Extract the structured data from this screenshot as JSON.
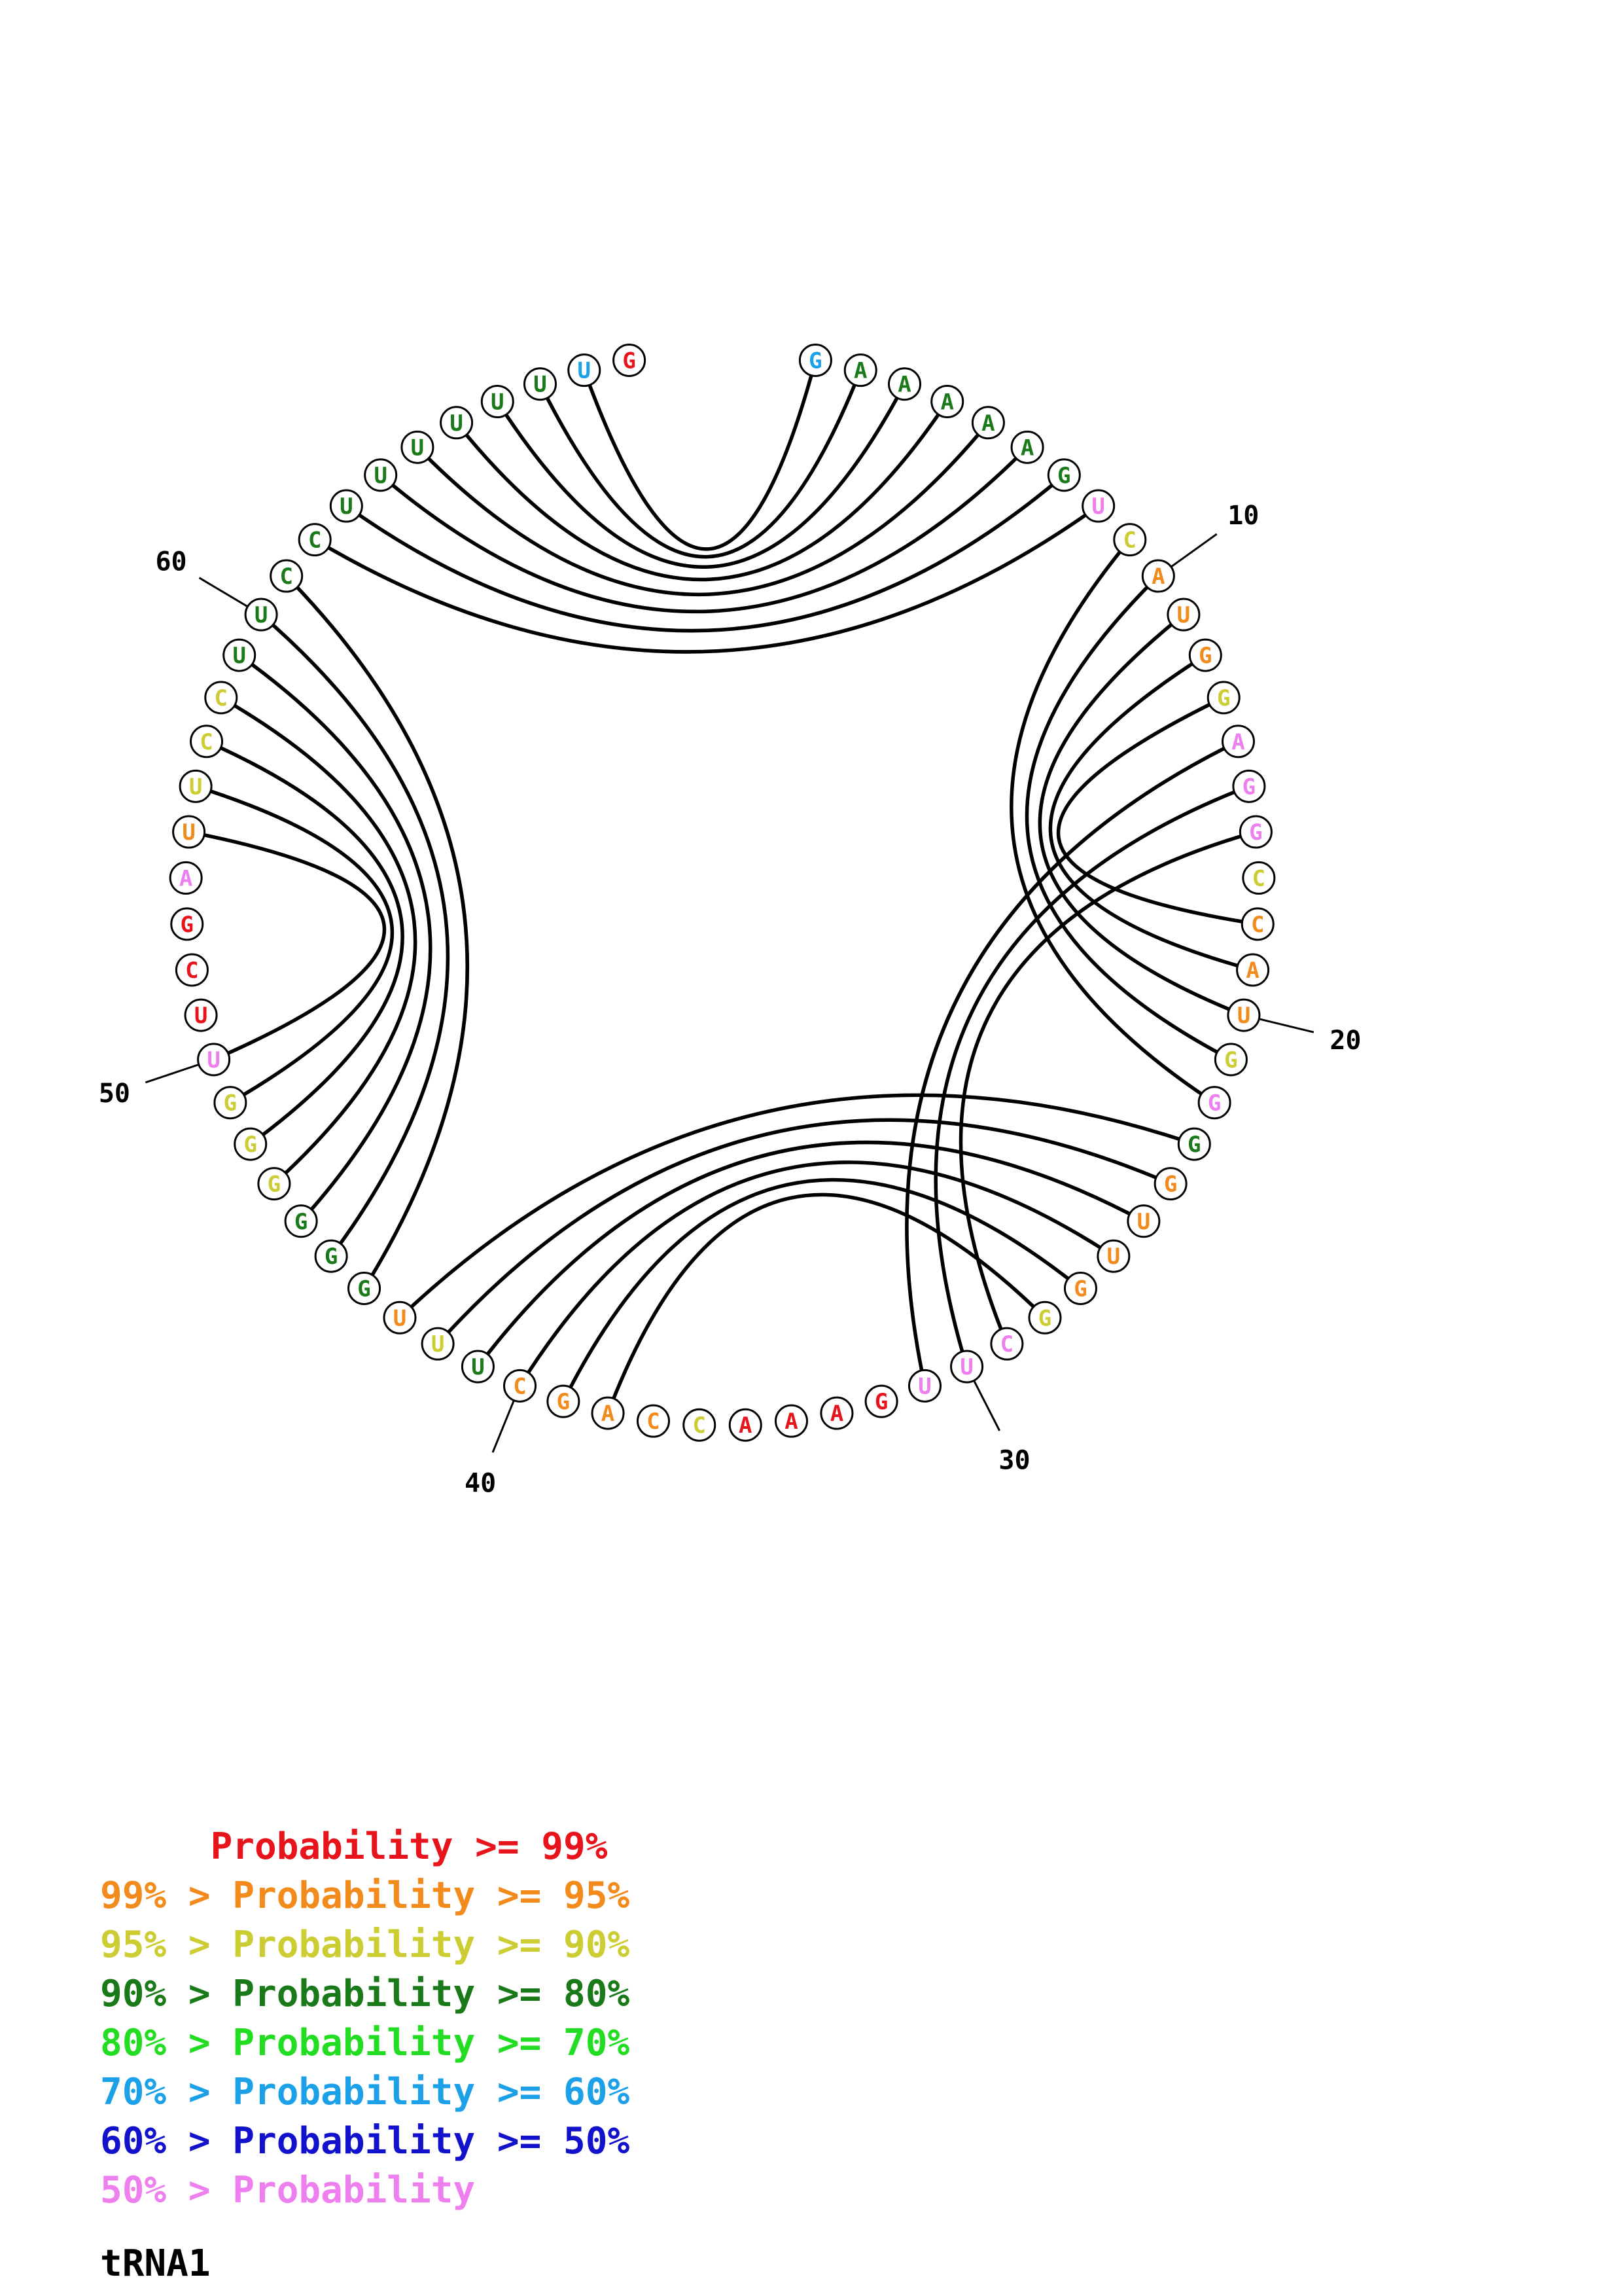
{
  "title": "tRNA1",
  "colors": {
    "p99": "#e8141b",
    "p95": "#f28a1c",
    "p90": "#cccc33",
    "p80": "#1a7a1a",
    "p70": "#22dd22",
    "p60": "#1ca0e8",
    "p50": "#1212cc",
    "plow": "#ee7fee",
    "line": "#000000"
  },
  "legend": [
    {
      "text": "     Probability >= 99%",
      "color": "p99"
    },
    {
      "text": "99% > Probability >= 95%",
      "color": "p95"
    },
    {
      "text": "95% > Probability >= 90%",
      "color": "p90"
    },
    {
      "text": "90% > Probability >= 80%",
      "color": "p80"
    },
    {
      "text": "80% > Probability >= 70%",
      "color": "p70"
    },
    {
      "text": "70% > Probability >= 60%",
      "color": "p60"
    },
    {
      "text": "60% > Probability >= 50%",
      "color": "p50"
    },
    {
      "text": "50% > Probability",
      "color": "plow"
    }
  ],
  "sequence": [
    {
      "n": 1,
      "base": "G",
      "color": "p60"
    },
    {
      "n": 2,
      "base": "A",
      "color": "p80"
    },
    {
      "n": 3,
      "base": "A",
      "color": "p80"
    },
    {
      "n": 4,
      "base": "A",
      "color": "p80"
    },
    {
      "n": 5,
      "base": "A",
      "color": "p80"
    },
    {
      "n": 6,
      "base": "A",
      "color": "p80"
    },
    {
      "n": 7,
      "base": "G",
      "color": "p80"
    },
    {
      "n": 8,
      "base": "U",
      "color": "plow"
    },
    {
      "n": 9,
      "base": "C",
      "color": "p90"
    },
    {
      "n": 10,
      "base": "A",
      "color": "p95"
    },
    {
      "n": 11,
      "base": "U",
      "color": "p95"
    },
    {
      "n": 12,
      "base": "G",
      "color": "p95"
    },
    {
      "n": 13,
      "base": "G",
      "color": "p90"
    },
    {
      "n": 14,
      "base": "A",
      "color": "plow"
    },
    {
      "n": 15,
      "base": "G",
      "color": "plow"
    },
    {
      "n": 16,
      "base": "G",
      "color": "plow"
    },
    {
      "n": 17,
      "base": "C",
      "color": "p90"
    },
    {
      "n": 18,
      "base": "C",
      "color": "p95"
    },
    {
      "n": 19,
      "base": "A",
      "color": "p95"
    },
    {
      "n": 20,
      "base": "U",
      "color": "p95"
    },
    {
      "n": 21,
      "base": "G",
      "color": "p90"
    },
    {
      "n": 22,
      "base": "G",
      "color": "plow"
    },
    {
      "n": 23,
      "base": "G",
      "color": "p80"
    },
    {
      "n": 24,
      "base": "G",
      "color": "p95"
    },
    {
      "n": 25,
      "base": "U",
      "color": "p95"
    },
    {
      "n": 26,
      "base": "U",
      "color": "p95"
    },
    {
      "n": 27,
      "base": "G",
      "color": "p95"
    },
    {
      "n": 28,
      "base": "G",
      "color": "p90"
    },
    {
      "n": 29,
      "base": "C",
      "color": "plow"
    },
    {
      "n": 30,
      "base": "U",
      "color": "plow"
    },
    {
      "n": 31,
      "base": "U",
      "color": "plow"
    },
    {
      "n": 32,
      "base": "G",
      "color": "p99"
    },
    {
      "n": 33,
      "base": "A",
      "color": "p99"
    },
    {
      "n": 34,
      "base": "A",
      "color": "p99"
    },
    {
      "n": 35,
      "base": "A",
      "color": "p99"
    },
    {
      "n": 36,
      "base": "C",
      "color": "p90"
    },
    {
      "n": 37,
      "base": "C",
      "color": "p95"
    },
    {
      "n": 38,
      "base": "A",
      "color": "p95"
    },
    {
      "n": 39,
      "base": "G",
      "color": "p95"
    },
    {
      "n": 40,
      "base": "C",
      "color": "p95"
    },
    {
      "n": 41,
      "base": "U",
      "color": "p80"
    },
    {
      "n": 42,
      "base": "U",
      "color": "p90"
    },
    {
      "n": 43,
      "base": "U",
      "color": "p95"
    },
    {
      "n": 44,
      "base": "G",
      "color": "p80"
    },
    {
      "n": 45,
      "base": "G",
      "color": "p80"
    },
    {
      "n": 46,
      "base": "G",
      "color": "p80"
    },
    {
      "n": 47,
      "base": "G",
      "color": "p90"
    },
    {
      "n": 48,
      "base": "G",
      "color": "p90"
    },
    {
      "n": 49,
      "base": "G",
      "color": "p90"
    },
    {
      "n": 50,
      "base": "U",
      "color": "plow"
    },
    {
      "n": 51,
      "base": "U",
      "color": "p99"
    },
    {
      "n": 52,
      "base": "C",
      "color": "p99"
    },
    {
      "n": 53,
      "base": "G",
      "color": "p99"
    },
    {
      "n": 54,
      "base": "A",
      "color": "plow"
    },
    {
      "n": 55,
      "base": "U",
      "color": "p95"
    },
    {
      "n": 56,
      "base": "U",
      "color": "p90"
    },
    {
      "n": 57,
      "base": "C",
      "color": "p90"
    },
    {
      "n": 58,
      "base": "C",
      "color": "p90"
    },
    {
      "n": 59,
      "base": "U",
      "color": "p80"
    },
    {
      "n": 60,
      "base": "U",
      "color": "p80"
    },
    {
      "n": 61,
      "base": "C",
      "color": "p80"
    },
    {
      "n": 62,
      "base": "C",
      "color": "p80"
    },
    {
      "n": 63,
      "base": "U",
      "color": "p80"
    },
    {
      "n": 64,
      "base": "U",
      "color": "p80"
    },
    {
      "n": 65,
      "base": "U",
      "color": "p80"
    },
    {
      "n": 66,
      "base": "U",
      "color": "p80"
    },
    {
      "n": 67,
      "base": "U",
      "color": "p80"
    },
    {
      "n": 68,
      "base": "U",
      "color": "p80"
    },
    {
      "n": 69,
      "base": "U",
      "color": "p60"
    },
    {
      "n": 70,
      "base": "G",
      "color": "p99"
    }
  ],
  "position_labels": [
    "10",
    "20",
    "30",
    "40",
    "50",
    "60"
  ],
  "pairs": [
    [
      1,
      69
    ],
    [
      2,
      68
    ],
    [
      3,
      67
    ],
    [
      4,
      66
    ],
    [
      5,
      65
    ],
    [
      6,
      64
    ],
    [
      7,
      63
    ],
    [
      8,
      62
    ],
    [
      9,
      22
    ],
    [
      10,
      21
    ],
    [
      11,
      20
    ],
    [
      12,
      19
    ],
    [
      13,
      18
    ],
    [
      14,
      31
    ],
    [
      15,
      30
    ],
    [
      16,
      29
    ],
    [
      23,
      43
    ],
    [
      24,
      42
    ],
    [
      25,
      41
    ],
    [
      26,
      40
    ],
    [
      27,
      39
    ],
    [
      28,
      38
    ],
    [
      44,
      61
    ],
    [
      45,
      60
    ],
    [
      46,
      59
    ],
    [
      47,
      58
    ],
    [
      48,
      57
    ],
    [
      49,
      56
    ],
    [
      50,
      55
    ]
  ]
}
